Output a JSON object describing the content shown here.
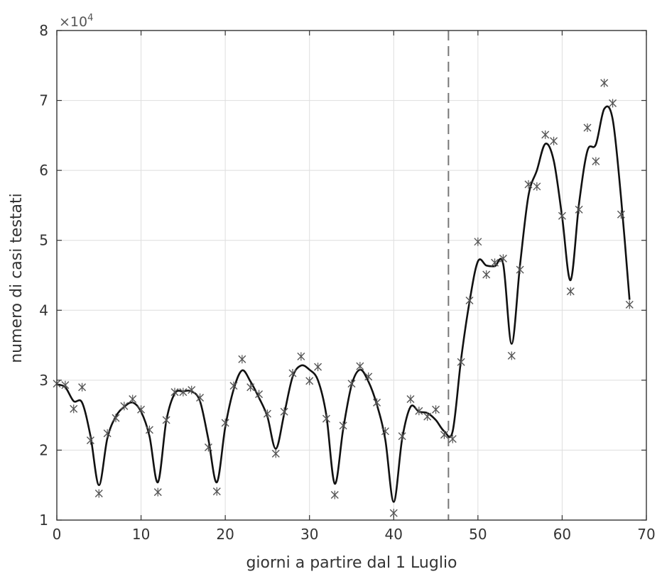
{
  "chart_data": {
    "type": "line",
    "xlabel": "giorni a partire dal 1 Luglio",
    "ylabel": "numero di casi testati",
    "exponent_label": "×10",
    "exponent_power": "4",
    "xlim": [
      0,
      70
    ],
    "ylim": [
      10000,
      80000
    ],
    "xticks": [
      0,
      10,
      20,
      30,
      40,
      50,
      60,
      70
    ],
    "yticks": [
      10000,
      20000,
      30000,
      40000,
      50000,
      60000,
      70000,
      80000
    ],
    "ytick_labels": [
      "1",
      "2",
      "3",
      "4",
      "5",
      "6",
      "7",
      "8"
    ],
    "grid": true,
    "vertical_dashed_line_x": 46.5,
    "series": [
      {
        "style": "markers",
        "marker": "x",
        "color": "#555555",
        "x": [
          0,
          1,
          2,
          3,
          4,
          5,
          6,
          7,
          8,
          9,
          10,
          11,
          12,
          13,
          14,
          15,
          16,
          17,
          18,
          19,
          20,
          21,
          22,
          23,
          24,
          25,
          26,
          27,
          28,
          29,
          30,
          31,
          32,
          33,
          34,
          35,
          36,
          37,
          38,
          39,
          40,
          41,
          42,
          43,
          44,
          45,
          46,
          47,
          48,
          49,
          50,
          51,
          52,
          53,
          54,
          55,
          56,
          57,
          58,
          59,
          60,
          61,
          62,
          63,
          64,
          65,
          66,
          67,
          68
        ],
        "y": [
          29500,
          29300,
          25900,
          29000,
          21400,
          13800,
          22400,
          24600,
          26300,
          27300,
          25800,
          22900,
          14000,
          24300,
          28300,
          28300,
          28600,
          27500,
          20400,
          14100,
          23900,
          29200,
          33000,
          29000,
          28000,
          25200,
          19500,
          25500,
          31000,
          33400,
          29900,
          31900,
          24500,
          13600,
          23500,
          29500,
          32000,
          30500,
          26800,
          22700,
          11000,
          22000,
          27300,
          25600,
          24800,
          25800,
          22200,
          21600,
          32600,
          41400,
          49800,
          45100,
          46800,
          47400,
          33500,
          45800,
          58000,
          57700,
          65100,
          64200,
          53500,
          42700,
          54400,
          66100,
          61300,
          72500,
          69600,
          53700,
          40800
        ]
      },
      {
        "style": "line",
        "color": "#111111",
        "x": [
          0,
          1,
          2,
          3,
          4,
          5,
          6,
          7,
          8,
          9,
          10,
          11,
          12,
          13,
          14,
          15,
          16,
          17,
          18,
          19,
          20,
          21,
          22,
          23,
          24,
          25,
          26,
          27,
          28,
          29,
          30,
          31,
          32,
          33,
          34,
          35,
          36,
          37,
          38,
          39,
          40,
          41,
          42,
          43,
          44,
          45,
          46,
          47,
          48,
          49,
          50,
          51,
          52,
          53,
          54,
          55,
          56,
          57,
          58,
          59,
          60,
          61,
          62,
          63,
          64,
          65,
          66,
          67,
          68
        ],
        "y": [
          29400,
          29000,
          27000,
          26800,
          22000,
          15000,
          21700,
          24800,
          26200,
          26800,
          25500,
          22000,
          15400,
          24200,
          28100,
          28400,
          28400,
          27000,
          21500,
          15400,
          23300,
          28700,
          31400,
          29800,
          27500,
          24800,
          20200,
          25200,
          30500,
          32100,
          31500,
          30000,
          25000,
          15200,
          23000,
          29300,
          31500,
          29800,
          26500,
          21500,
          12600,
          21600,
          26200,
          25500,
          25300,
          24300,
          22700,
          22700,
          33000,
          41200,
          47000,
          46400,
          46300,
          46600,
          35200,
          46500,
          56400,
          60000,
          63800,
          61400,
          53300,
          44300,
          55200,
          62800,
          63700,
          68800,
          67300,
          56000,
          41500
        ]
      }
    ]
  }
}
